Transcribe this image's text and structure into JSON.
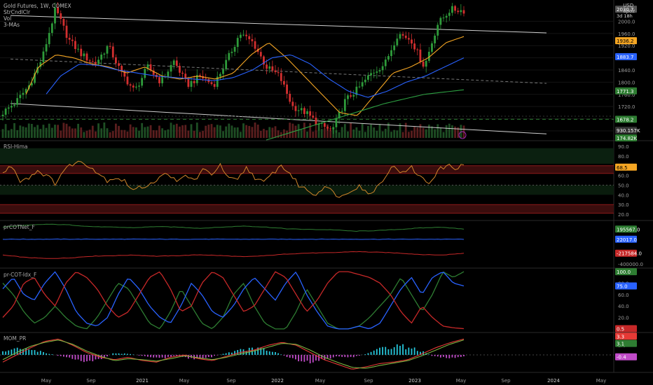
{
  "header": {
    "symbol_line": "Gold Futures, 1W, COMEX",
    "indicators": [
      "StrCndlClr",
      "Vol",
      "3-MAs"
    ],
    "currency": "USD",
    "scale_mode": "apoz"
  },
  "panes": {
    "rsi": {
      "title": "RSI-Hima"
    },
    "cot_net": {
      "title": "prCOTNet_F"
    },
    "cot_idx": {
      "title": "pr-COT-Idx_F"
    },
    "mom": {
      "title": "MOM_PR"
    }
  },
  "colors": {
    "bg": "#000000",
    "up": "#2e9b3a",
    "down": "#d32f2f",
    "ma_fast": "#f5a623",
    "ma_mid": "#2962ff",
    "ma_slow": "#2ea043",
    "rsi": "#d0852a",
    "cot_green": "#2e7d32",
    "cot_blue": "#2962ff",
    "cot_red": "#c62828",
    "hist_pos": "#26c6da",
    "hist_neg": "#c04bc8"
  },
  "chart_data": [
    {
      "type": "candlestick",
      "title": "Gold Futures, 1W, COMEX",
      "x_ticks": [
        "May",
        "Sep",
        "2021",
        "May",
        "Sep",
        "2022",
        "May",
        "Sep",
        "2023",
        "May",
        "Sep",
        "2024",
        "May"
      ],
      "y_ticks": [
        1640.0,
        1680.0,
        1720.0,
        1760.0,
        1800.0,
        1840.0,
        1880.0,
        1920.0,
        1960.0,
        2000.0
      ],
      "ylim": [
        1610,
        2070
      ],
      "last_price": "2030.7",
      "countdown": "3d 18h",
      "price_labels": [
        {
          "value": 1936.2,
          "text": "1936.2",
          "color": "#f5a623"
        },
        {
          "value": 1883.7,
          "text": "1883.7",
          "color": "#2962ff"
        },
        {
          "value": 1771.3,
          "text": "1771.3",
          "color": "#2e7d32"
        },
        {
          "value": 1678.2,
          "text": "1678.2",
          "color": "#2e7d32"
        }
      ],
      "horizontal_line": 1678.2,
      "channel_upper": [
        [
          0,
          2019
        ],
        [
          1,
          1962
        ]
      ],
      "channel_lower": [
        [
          0,
          1730
        ],
        [
          1,
          1630
        ]
      ],
      "channel_mid": [
        [
          0,
          1876
        ],
        [
          1,
          1796
        ]
      ],
      "volume_labels": [
        "930.157K",
        "174.82K"
      ],
      "price_anchors": [
        1700,
        1735,
        1790,
        1880,
        2040,
        1940,
        1890,
        1860,
        1920,
        1830,
        1770,
        1850,
        1800,
        1870,
        1790,
        1820,
        1790,
        1870,
        1960,
        1930,
        1850,
        1820,
        1720,
        1700,
        1660,
        1640,
        1740,
        1780,
        1830,
        1860,
        1960,
        1940,
        1850,
        1990,
        2040,
        2035
      ],
      "ma_fast_anchors": [
        1640,
        1720,
        1850,
        1890,
        1880,
        1860,
        1850,
        1830,
        1850,
        1820,
        1810,
        1820,
        1810,
        1830,
        1890,
        1930,
        1880,
        1820,
        1760,
        1700,
        1690,
        1760,
        1830,
        1850,
        1880,
        1930,
        1950
      ],
      "ma_mid_anchors": [
        1560,
        1640,
        1740,
        1820,
        1860,
        1855,
        1840,
        1830,
        1820,
        1815,
        1810,
        1805,
        1815,
        1840,
        1880,
        1890,
        1860,
        1810,
        1770,
        1750,
        1770,
        1800,
        1820,
        1850,
        1880
      ],
      "ma_slow_anchors": [
        1610,
        1650,
        1690,
        1730,
        1760,
        1775
      ]
    },
    {
      "type": "line",
      "title": "RSI-Hima",
      "y_ticks": [
        20.0,
        30.0,
        40.0,
        50.0,
        60.0,
        70.0,
        80.0,
        90.0
      ],
      "ylim": [
        15,
        95
      ],
      "last_value": "68.5",
      "bands": {
        "upper": [
          62,
          70
        ],
        "lower": [
          21,
          30
        ],
        "green": [
          72,
          88
        ],
        "green2": [
          40,
          50
        ]
      },
      "anchors": [
        62,
        70,
        55,
        58,
        65,
        60,
        52,
        65,
        72,
        74,
        70,
        62,
        55,
        58,
        54,
        45,
        48,
        52,
        57,
        63,
        52,
        60,
        55,
        65,
        62,
        70,
        56,
        55,
        68,
        58,
        52,
        62,
        70,
        62,
        50,
        45,
        40,
        50,
        42,
        38,
        45,
        50,
        40,
        48,
        60,
        70,
        62,
        68,
        58,
        52,
        65,
        70,
        68,
        70
      ]
    },
    {
      "type": "line",
      "title": "prCOTNet_F",
      "y_ticks": [
        -400000.0
      ],
      "series": [
        {
          "color": "green",
          "last": "195567.0",
          "anchors": [
            230000,
            260000,
            280000,
            270000,
            240000,
            230000,
            220000,
            240000,
            230000,
            210000,
            230000,
            250000,
            230000,
            200000,
            190000,
            185000,
            160000,
            170000,
            190000,
            215000,
            230000,
            196000
          ]
        },
        {
          "color": "blue",
          "last": "22017.0",
          "anchors": [
            22000,
            22500,
            23000,
            22500,
            22000,
            22000,
            22500,
            22000,
            22017
          ]
        },
        {
          "color": "red",
          "last": "-217584.0",
          "anchors": [
            -250000,
            -290000,
            -310000,
            -300000,
            -270000,
            -260000,
            -250000,
            -270000,
            -260000,
            -245000,
            -260000,
            -280000,
            -260000,
            -230000,
            -215000,
            -210000,
            -190000,
            -200000,
            -215000,
            -240000,
            -250000,
            -218000
          ]
        }
      ],
      "ylim": [
        -450000,
        320000
      ]
    },
    {
      "type": "line",
      "title": "pr-COT-Idx_F",
      "y_ticks": [
        20.0,
        40.0,
        60.0,
        80.0
      ],
      "ylim": [
        -5,
        105
      ],
      "labels": [
        {
          "value": 100.0,
          "text": "100.0",
          "color": "green"
        },
        {
          "value": 75.0,
          "text": "75.0",
          "color": "blue"
        },
        {
          "value": 0.5,
          "text": "0.5",
          "color": "red"
        }
      ],
      "series": [
        {
          "color": "green",
          "anchors": [
            80,
            60,
            30,
            10,
            20,
            40,
            20,
            5,
            0,
            20,
            50,
            80,
            70,
            40,
            10,
            0,
            30,
            70,
            40,
            10,
            0,
            20,
            60,
            80,
            40,
            10,
            0,
            0,
            30,
            70,
            40,
            10,
            0,
            0,
            5,
            20,
            40,
            60,
            90,
            60,
            30,
            60,
            100,
            90,
            100
          ]
        },
        {
          "color": "blue",
          "anchors": [
            70,
            90,
            60,
            50,
            80,
            100,
            70,
            30,
            10,
            5,
            20,
            60,
            90,
            70,
            40,
            20,
            10,
            40,
            80,
            60,
            30,
            20,
            40,
            70,
            90,
            70,
            50,
            80,
            100,
            60,
            30,
            5,
            0,
            0,
            5,
            0,
            10,
            40,
            70,
            90,
            60,
            90,
            100,
            80,
            75
          ]
        },
        {
          "color": "red",
          "anchors": [
            20,
            40,
            80,
            90,
            60,
            40,
            80,
            100,
            90,
            70,
            40,
            20,
            30,
            60,
            90,
            100,
            70,
            30,
            40,
            80,
            100,
            90,
            60,
            30,
            40,
            70,
            100,
            90,
            60,
            30,
            50,
            80,
            100,
            100,
            95,
            90,
            80,
            60,
            30,
            10,
            40,
            20,
            5,
            2,
            0.5
          ]
        }
      ]
    },
    {
      "type": "line",
      "title": "MOM_PR",
      "y_ticks": [
        2.0
      ],
      "labels": [
        {
          "value": 3.3,
          "text": "3.3",
          "color": "red"
        },
        {
          "value": 3.1,
          "text": "3.1",
          "color": "green"
        },
        {
          "value": -0.4,
          "text": "-0.4",
          "color": "magenta"
        }
      ],
      "ylim": [
        -3.5,
        4.5
      ],
      "red_anchors": [
        -1.5,
        0,
        1.5,
        2.8,
        3.3,
        2,
        0.5,
        -0.5,
        -1,
        -0.5,
        -1.2,
        -1.5,
        -0.5,
        0,
        -0.8,
        -1.2,
        -0.3,
        0.5,
        1,
        2,
        2.6,
        2,
        0.5,
        -1,
        -2,
        -3,
        -2.5,
        -1.8,
        -1.5,
        -1,
        0.2,
        1.5,
        2.5,
        3.3
      ],
      "green_anchors": [
        -1,
        0.5,
        1.8,
        2.6,
        3.1,
        2.2,
        0.8,
        -0.3,
        -1.2,
        -0.8,
        -1,
        -1.3,
        -0.8,
        -0.2,
        -0.6,
        -1,
        -0.5,
        0.2,
        0.8,
        1.6,
        2.4,
        2.2,
        1,
        -0.5,
        -1.6,
        -2.6,
        -2.8,
        -2.2,
        -1.7,
        -1.2,
        -0.2,
        1,
        2.2,
        3.1
      ],
      "hist_anchors": [
        0.8,
        1.5,
        1.2,
        0.2,
        -0.6,
        -1.4,
        -1.2,
        0.4,
        0.2,
        -0.4,
        -0.8,
        -0.2,
        -1,
        -0.6,
        0.4,
        1.2,
        1.6,
        0.8,
        -0.6,
        -1.8,
        -1.4,
        -0.4,
        -0.6,
        0.4,
        1.8,
        2.2,
        1.4,
        -0.2,
        -0.8,
        -0.4
      ]
    }
  ]
}
